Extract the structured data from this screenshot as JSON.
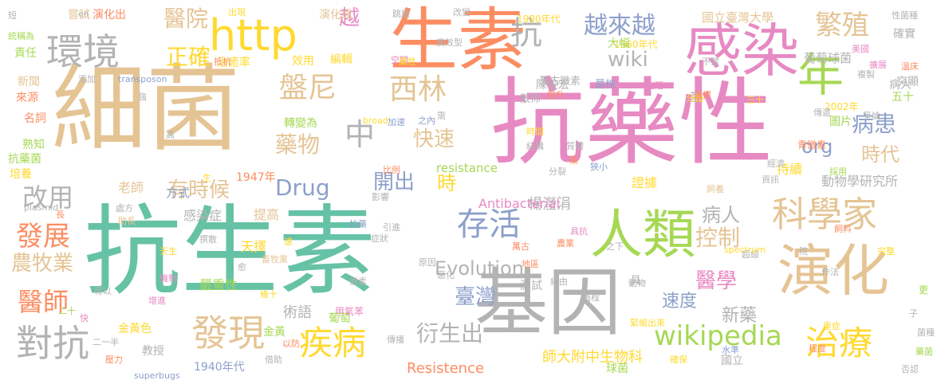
{
  "words": [
    {
      "text": "抗藥性",
      "color": "#E78AC3"
    },
    {
      "text": "抗生素",
      "color": "#66C2A5"
    },
    {
      "text": "細菌",
      "color": "#E5C494"
    },
    {
      "text": "基因",
      "color": "#B3B3B3"
    },
    {
      "text": "生素",
      "color": "#FC8D62"
    },
    {
      "text": "感染",
      "color": "#E78AC3"
    },
    {
      "text": "演化",
      "color": "#E5C494"
    },
    {
      "text": "人類",
      "color": "#A6D854"
    },
    {
      "text": "年",
      "color": "#A6D854"
    },
    {
      "text": "http",
      "color": "#FFD92F"
    },
    {
      "text": "環境",
      "color": "#B3B3B3"
    },
    {
      "text": "對抗",
      "color": "#B3B3B3"
    },
    {
      "text": "發現",
      "color": "#E5C494"
    },
    {
      "text": "疾病",
      "color": "#FFD92F"
    },
    {
      "text": "科學家",
      "color": "#E5C494"
    },
    {
      "text": "存活",
      "color": "#8DA0CB"
    },
    {
      "text": "治療",
      "color": "#FFD92F"
    },
    {
      "text": "抗",
      "color": "#B3B3B3"
    },
    {
      "text": "中",
      "color": "#B3B3B3"
    },
    {
      "text": "盤尼",
      "color": "#E5C494"
    },
    {
      "text": "西林",
      "color": "#E5C494"
    },
    {
      "text": "繁殖",
      "color": "#E5C494"
    },
    {
      "text": "wikipedia",
      "color": "#A6D854"
    },
    {
      "text": "發展",
      "color": "#FC8D62"
    },
    {
      "text": "醫師",
      "color": "#FC8D62"
    },
    {
      "text": "改用",
      "color": "#B3B3B3"
    },
    {
      "text": "越來越",
      "color": "#8DA0CB"
    },
    {
      "text": "醫院",
      "color": "#E5C494"
    },
    {
      "text": "正確",
      "color": "#FFD92F"
    },
    {
      "text": "藥物",
      "color": "#E5C494"
    },
    {
      "text": "Drug",
      "color": "#8DA0CB"
    },
    {
      "text": "快速",
      "color": "#E5C494"
    },
    {
      "text": "控制",
      "color": "#E5C494"
    },
    {
      "text": "醫學",
      "color": "#E78AC3"
    },
    {
      "text": "臺灣",
      "color": "#8DA0CB"
    },
    {
      "text": "衍生出",
      "color": "#B3B3B3"
    },
    {
      "text": "時",
      "color": "#FFD92F"
    },
    {
      "text": "開出",
      "color": "#8DA0CB"
    },
    {
      "text": "有時候",
      "color": "#E5C494"
    },
    {
      "text": "病患",
      "color": "#8DA0CB"
    },
    {
      "text": "病人",
      "color": "#B3B3B3"
    },
    {
      "text": "時代",
      "color": "#E5C494"
    },
    {
      "text": "越",
      "color": "#E78AC3"
    },
    {
      "text": "wiki",
      "color": "#B3B3B3"
    },
    {
      "text": "org",
      "color": "#8DA0CB"
    },
    {
      "text": "農牧業",
      "color": "#E5C494"
    },
    {
      "text": "Evolution",
      "color": "#B3B3B3"
    },
    {
      "text": "速度",
      "color": "#8DA0CB"
    },
    {
      "text": "新藥",
      "color": "#B3B3B3"
    },
    {
      "text": "Resistence",
      "color": "#FC8D62"
    },
    {
      "text": "師大附中生物科",
      "color": "#FFD92F"
    },
    {
      "text": "楊瀅涓",
      "color": "#B3B3B3"
    },
    {
      "text": "Antibacterial",
      "color": "#E78AC3"
    },
    {
      "text": "resistance",
      "color": "#A6D854"
    },
    {
      "text": "國立臺灣大學",
      "color": "#E5C494"
    },
    {
      "text": "動物學研究所",
      "color": "#B3B3B3"
    },
    {
      "text": "持續",
      "color": "#FFD92F"
    },
    {
      "text": "證據",
      "color": "#FFD92F"
    },
    {
      "text": "天擇",
      "color": "#FFD92F"
    },
    {
      "text": "嚴重性",
      "color": "#A6D854"
    },
    {
      "text": "術語",
      "color": "#B3B3B3"
    },
    {
      "text": "提高",
      "color": "#E5C494"
    },
    {
      "text": "感染症",
      "color": "#B3B3B3"
    },
    {
      "text": "老師",
      "color": "#E5C494"
    },
    {
      "text": "方式",
      "color": "#8DA0CB"
    },
    {
      "text": "1947年",
      "color": "#FC8D62"
    },
    {
      "text": "1940年代",
      "color": "#8DA0CB"
    },
    {
      "text": "1960年代",
      "color": "#FFD92F"
    },
    {
      "text": "1980年代",
      "color": "#FFD92F"
    },
    {
      "text": "2002年",
      "color": "#FFD92F"
    },
    {
      "text": "轉變為",
      "color": "#A6D854"
    },
    {
      "text": "陳俊宏",
      "color": "#B3B3B3"
    },
    {
      "text": "金黃色",
      "color": "#FFD92F"
    },
    {
      "text": "金黃",
      "color": "#A6D854"
    },
    {
      "text": "葡萄",
      "color": "#A6D854"
    },
    {
      "text": "葡萄球菌",
      "color": "#B3B3B3"
    },
    {
      "text": "教授",
      "color": "#B3B3B3"
    },
    {
      "text": "國立",
      "color": "#B3B3B3"
    },
    {
      "text": "球菌",
      "color": "#A6D854"
    },
    {
      "text": "測試",
      "color": "#B3B3B3"
    },
    {
      "text": "具",
      "color": "#B3B3B3"
    },
    {
      "text": "圖片",
      "color": "#A6D854"
    },
    {
      "text": "五十",
      "color": "#A6D854"
    },
    {
      "text": "突顯",
      "color": "#B3B3B3"
    },
    {
      "text": "確實",
      "color": "#B3B3B3"
    },
    {
      "text": "大幅",
      "color": "#A6D854"
    },
    {
      "text": "治癒率",
      "color": "#FFD92F"
    },
    {
      "text": "效用",
      "color": "#FFD92F"
    },
    {
      "text": "編輯",
      "color": "#FFD92F"
    },
    {
      "text": "演化出",
      "color": "#FC8D62"
    },
    {
      "text": "演化成",
      "color": "#E5C494"
    },
    {
      "text": "嘗試",
      "color": "#E5C494"
    },
    {
      "text": "責任",
      "color": "#A6D854"
    },
    {
      "text": "新聞",
      "color": "#E5C494"
    },
    {
      "text": "來源",
      "color": "#FC8D62"
    },
    {
      "text": "名詞",
      "color": "#FC8D62"
    },
    {
      "text": "熟知",
      "color": "#A6D854"
    },
    {
      "text": "抗藥菌",
      "color": "#A6D854"
    },
    {
      "text": "培養",
      "color": "#FFD92F"
    },
    {
      "text": "萬古黴素",
      "color": "#B3B3B3"
    },
    {
      "text": "菌株",
      "color": "#8DA0CB"
    },
    {
      "text": "散佈",
      "color": "#B3B3B3"
    },
    {
      "text": "基",
      "color": "#B3B3B3"
    },
    {
      "text": "病人",
      "color": "#B3B3B3"
    },
    {
      "text": "甲氧苯",
      "color": "#E78AC3"
    },
    {
      "text": "青黴素",
      "color": "#FC8D62"
    },
    {
      "text": "超級",
      "color": "#B3B3B3"
    },
    {
      "text": "superbugs",
      "color": "#8DA0CB"
    },
    {
      "text": "transposon",
      "color": "#8DA0CB"
    },
    {
      "text": "plasmid",
      "color": "#B3B3B3"
    },
    {
      "text": "broad",
      "color": "#FFD92F"
    },
    {
      "text": "spectrum",
      "color": "#FFD92F"
    },
    {
      "text": "en",
      "color": "#B3B3B3"
    },
    {
      "text": "短",
      "color": "#B3B3B3"
    },
    {
      "text": "統稱為",
      "color": "#A6D854"
    },
    {
      "text": "性菌種",
      "color": "#B3B3B3"
    },
    {
      "text": "美國",
      "color": "#E78AC3"
    },
    {
      "text": "複製",
      "color": "#B3B3B3"
    },
    {
      "text": "溫床",
      "color": "#FC8D62"
    },
    {
      "text": "擴展",
      "color": "#E78AC3"
    },
    {
      "text": "爭論",
      "color": "#B3B3B3"
    },
    {
      "text": "傳遞",
      "color": "#B3B3B3"
    },
    {
      "text": "採用",
      "color": "#A6D854"
    },
    {
      "text": "經濟",
      "color": "#B3B3B3"
    },
    {
      "text": "資訊",
      "color": "#B3B3B3"
    },
    {
      "text": "飼養",
      "color": "#E5C494"
    },
    {
      "text": "影響",
      "color": "#B3B3B3"
    },
    {
      "text": "加速",
      "color": "#8DA0CB"
    },
    {
      "text": "之內",
      "color": "#8DA0CB"
    },
    {
      "text": "狹小",
      "color": "#8DA0CB"
    },
    {
      "text": "時間",
      "color": "#FFD92F"
    },
    {
      "text": "結構",
      "color": "#B3B3B3"
    },
    {
      "text": "分裂",
      "color": "#B3B3B3"
    },
    {
      "text": "比例",
      "color": "#FC8D62"
    },
    {
      "text": "引進",
      "color": "#B3B3B3"
    },
    {
      "text": "症狀",
      "color": "#B3B3B3"
    },
    {
      "text": "原因",
      "color": "#B3B3B3"
    },
    {
      "text": "惡化",
      "color": "#B3B3B3"
    },
    {
      "text": "地區",
      "color": "#FC8D62"
    },
    {
      "text": "萬古",
      "color": "#FC8D62"
    },
    {
      "text": "農業",
      "color": "#FC8D62"
    },
    {
      "text": "具抗",
      "color": "#E78AC3"
    },
    {
      "text": "之下",
      "color": "#B3B3B3"
    },
    {
      "text": "飼料",
      "color": "#FC8D62"
    },
    {
      "text": "完整",
      "color": "#FFD92F"
    },
    {
      "text": "作法",
      "color": "#B3B3B3"
    },
    {
      "text": "重症",
      "color": "#FFD92F"
    },
    {
      "text": "程度",
      "color": "#FC8D62"
    },
    {
      "text": "確保",
      "color": "#FFD92F"
    },
    {
      "text": "菌種",
      "color": "#B3B3B3"
    },
    {
      "text": "否認",
      "color": "#B3B3B3"
    },
    {
      "text": "藥菌",
      "color": "#A6D854"
    },
    {
      "text": "水準",
      "color": "#8DA0CB"
    },
    {
      "text": "緊縮出來",
      "color": "#FFD92F"
    },
    {
      "text": "動物",
      "color": "#B3B3B3"
    },
    {
      "text": "傳播",
      "color": "#B3B3B3"
    },
    {
      "text": "借助",
      "color": "#B3B3B3"
    },
    {
      "text": "以防",
      "color": "#FC8D62"
    },
    {
      "text": "二十",
      "color": "#A6D854"
    },
    {
      "text": "二一半",
      "color": "#B3B3B3"
    },
    {
      "text": "壓力",
      "color": "#FC8D62"
    },
    {
      "text": "得以",
      "color": "#B3B3B3"
    },
    {
      "text": "增進",
      "color": "#E78AC3"
    },
    {
      "text": "快",
      "color": "#E78AC3"
    },
    {
      "text": "天生",
      "color": "#FFD92F"
    },
    {
      "text": "機制",
      "color": "#E78AC3"
    },
    {
      "text": "撰散",
      "color": "#B3B3B3"
    },
    {
      "text": "愈",
      "color": "#B3B3B3"
    },
    {
      "text": "幾十",
      "color": "#FFD92F"
    },
    {
      "text": "速",
      "color": "#FFD92F"
    },
    {
      "text": "畜牧業",
      "color": "#E5C494"
    },
    {
      "text": "助長",
      "color": "#E5C494"
    },
    {
      "text": "處方",
      "color": "#B3B3B3"
    },
    {
      "text": "長",
      "color": "#FC8D62"
    },
    {
      "text": "高",
      "color": "#B3B3B3"
    },
    {
      "text": "強",
      "color": "#B3B3B3"
    },
    {
      "text": "添加",
      "color": "#B3B3B3"
    },
    {
      "text": "抵抗",
      "color": "#FC8D62"
    },
    {
      "text": "空間",
      "color": "#E78AC3"
    },
    {
      "text": "藥性",
      "color": "#FFD92F"
    },
    {
      "text": "廣效型",
      "color": "#B3B3B3"
    },
    {
      "text": "改變",
      "color": "#B3B3B3"
    },
    {
      "text": "跳躍",
      "color": "#B3B3B3"
    },
    {
      "text": "出現",
      "color": "#FFD92F"
    },
    {
      "text": "提升",
      "color": "#FC8D62"
    },
    {
      "text": "分鐘",
      "color": "#FFD92F"
    },
    {
      "text": "三十",
      "color": "#FFD92F"
    },
    {
      "text": "選擇",
      "color": "#FC8D62"
    },
    {
      "text": "生活",
      "color": "#E78AC3"
    },
    {
      "text": "不當",
      "color": "#B3B3B3"
    },
    {
      "text": "經由",
      "color": "#B3B3B3"
    },
    {
      "text": "過程",
      "color": "#B3B3B3"
    },
    {
      "text": "更",
      "color": "#A6D854"
    },
    {
      "text": "子",
      "color": "#B3B3B3"
    },
    {
      "text": "院",
      "color": "#B3B3B3"
    },
    {
      "text": "生",
      "color": "#FFD92F"
    },
    {
      "text": "徽素",
      "color": "#B3B3B3"
    },
    {
      "text": "需",
      "color": "#B3B3B3"
    },
    {
      "text": "質體",
      "color": "#B3B3B3"
    },
    {
      "text": "藥",
      "color": "#FC8D62"
    },
    {
      "text": "抗藥",
      "color": "#8DA0CB"
    },
    {
      "text": "出抗",
      "color": "#8DA0CB"
    },
    {
      "text": "診斷",
      "color": "#FC8D62"
    }
  ]
}
